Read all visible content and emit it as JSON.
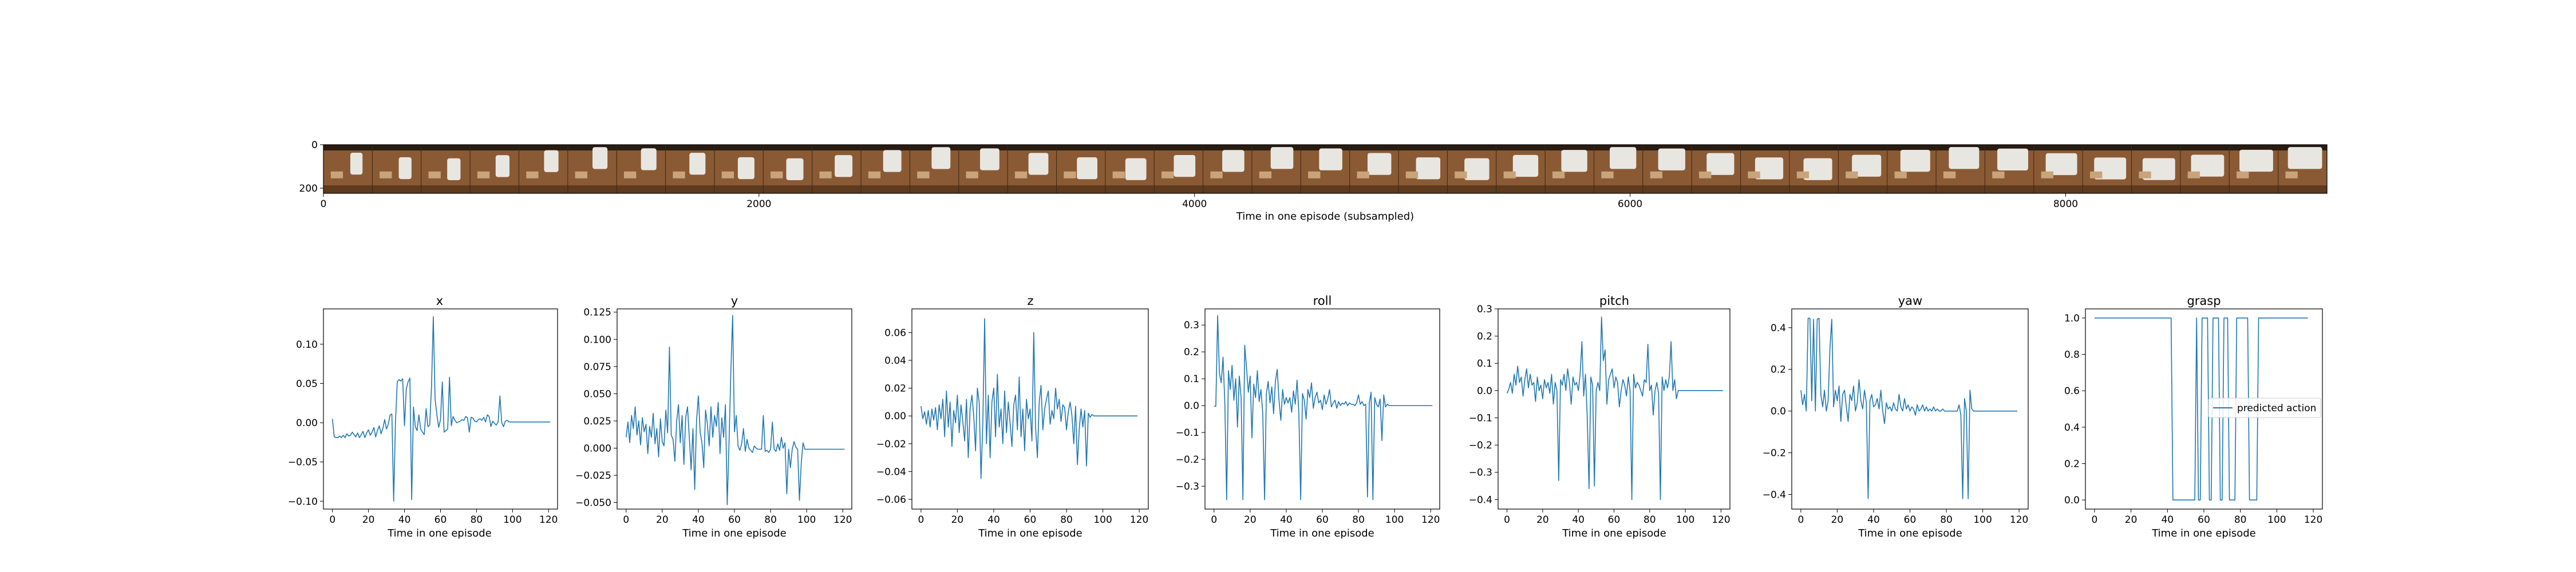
{
  "chart_data": [
    {
      "type": "image_strip",
      "xlabel": "Time in one episode (subsampled)",
      "x_ticks": [
        0,
        2000,
        4000,
        6000,
        8000
      ],
      "y_ticks": [
        0,
        200
      ],
      "xlim": [
        0,
        9200
      ],
      "ylim": [
        0,
        224
      ],
      "frame_count": 41,
      "colors": {
        "wood": "#8a5a34",
        "wood_dark": "#5e3a1f",
        "gripper": "#e8e6e1",
        "shadow": "#2a1b10"
      }
    },
    {
      "type": "line",
      "title": "x",
      "xlabel": "Time in one episode",
      "xlim": [
        -5,
        125
      ],
      "ylim": [
        -0.11,
        0.145
      ],
      "x_ticks": [
        0,
        20,
        40,
        60,
        80,
        100,
        120
      ],
      "y_ticks": [
        -0.1,
        -0.05,
        0.0,
        0.05,
        0.1
      ],
      "y_tick_labels": [
        "−0.10",
        "−0.05",
        "0.00",
        "0.05",
        "0.10"
      ],
      "values": [
        0.005,
        -0.018,
        -0.019,
        -0.019,
        -0.017,
        -0.019,
        -0.016,
        -0.019,
        -0.014,
        -0.017,
        -0.016,
        -0.012,
        -0.015,
        -0.018,
        -0.013,
        -0.019,
        -0.015,
        -0.011,
        -0.019,
        -0.013,
        -0.009,
        -0.016,
        -0.012,
        -0.006,
        -0.018,
        -0.01,
        -0.004,
        -0.014,
        -0.007,
        0.004,
        -0.008,
        -0.002,
        0.01,
        0.011,
        -0.1,
        0.001,
        0.052,
        0.055,
        0.053,
        0.056,
        -0.004,
        0.043,
        0.052,
        0.057,
        -0.098,
        0.02,
        -0.005,
        -0.01,
        0.01,
        -0.008,
        -0.012,
        -0.015,
        0.018,
        -0.005,
        -0.003,
        0.045,
        0.135,
        0.03,
        0.01,
        -0.006,
        0.004,
        0.052,
        -0.012,
        -0.01,
        -0.008,
        0.058,
        -0.004,
        0.008,
        0.003,
        0.0,
        0.001,
        0.002,
        0.004,
        0.003,
        0.008,
        0.006,
        -0.012,
        0.007,
        0.006,
        0.002,
        0.001,
        0.004,
        0.005,
        0.003,
        0.007,
        0.001,
        0.01,
        0.008,
        -0.005,
        0.002,
        -0.001,
        -0.003,
        0.001,
        0.034,
        0.0,
        -0.005,
        0.002,
        0.003,
        0.001,
        0.001,
        0.001,
        0.001,
        0.001,
        0.001,
        0.001,
        0.001,
        0.001,
        0.001,
        0.001,
        0.001,
        0.001,
        0.001,
        0.001,
        0.001,
        0.001,
        0.001,
        0.001,
        0.001,
        0.001,
        0.001,
        0.001,
        0.001
      ],
      "series_color": "#1f77b4"
    },
    {
      "type": "line",
      "title": "y",
      "xlabel": "Time in one episode",
      "xlim": [
        -5,
        125
      ],
      "ylim": [
        -0.056,
        0.128
      ],
      "x_ticks": [
        0,
        20,
        40,
        60,
        80,
        100,
        120
      ],
      "y_ticks": [
        -0.05,
        -0.025,
        0.0,
        0.025,
        0.05,
        0.075,
        0.1,
        0.125
      ],
      "y_tick_labels": [
        "−0.050",
        "−0.025",
        "0.000",
        "0.025",
        "0.050",
        "0.075",
        "0.100",
        "0.125"
      ],
      "values": [
        0.01,
        0.024,
        0.005,
        0.03,
        0.018,
        0.038,
        0.012,
        0.025,
        0.003,
        0.028,
        0.015,
        0.022,
        -0.005,
        0.02,
        0.01,
        0.032,
        0.004,
        0.018,
        -0.008,
        0.027,
        0.006,
        0.002,
        0.035,
        0.014,
        0.093,
        0.012,
        0.008,
        -0.012,
        0.025,
        0.04,
        0.005,
        0.03,
        -0.015,
        0.028,
        0.038,
        0.01,
        -0.02,
        0.018,
        -0.038,
        0.025,
        0.048,
        0.015,
        0.005,
        -0.018,
        0.035,
        0.022,
        0.002,
        0.038,
        0.01,
        0.03,
        0.02,
        0.042,
        -0.005,
        0.028,
        0.01,
        0.04,
        -0.052,
        0.005,
        0.07,
        0.122,
        0.015,
        0.03,
        0.002,
        -0.002,
        0.004,
        0.018,
        -0.003,
        0.008,
        0.0,
        -0.002,
        -0.004,
        0.002,
        0.0,
        -0.001,
        -0.001,
        -0.001,
        0.03,
        -0.003,
        -0.002,
        -0.004,
        -0.001,
        0.024,
        -0.001,
        -0.003,
        0.004,
        -0.002,
        0.01,
        0.0,
        0.005,
        -0.042,
        -0.001,
        -0.018,
        -0.001,
        0.006,
        0.001,
        -0.001,
        -0.048,
        -0.014,
        0.005,
        -0.001,
        -0.001,
        -0.001,
        -0.001,
        -0.001,
        -0.001,
        -0.001,
        -0.001,
        -0.001,
        -0.001,
        -0.001,
        -0.001,
        -0.001,
        -0.001,
        -0.001,
        -0.001,
        -0.001,
        -0.001,
        -0.001,
        -0.001,
        -0.001,
        -0.001,
        -0.001
      ],
      "series_color": "#1f77b4"
    },
    {
      "type": "line",
      "title": "z",
      "xlabel": "Time in one episode",
      "xlim": [
        -5,
        125
      ],
      "ylim": [
        -0.067,
        0.077
      ],
      "x_ticks": [
        0,
        20,
        40,
        60,
        80,
        100,
        120
      ],
      "y_ticks": [
        -0.06,
        -0.04,
        -0.02,
        0.0,
        0.02,
        0.04,
        0.06
      ],
      "y_tick_labels": [
        "−0.06",
        "−0.04",
        "−0.02",
        "0.00",
        "0.02",
        "0.04",
        "0.06"
      ],
      "values": [
        0.007,
        -0.002,
        0.003,
        -0.006,
        0.004,
        -0.008,
        0.005,
        -0.003,
        0.006,
        -0.01,
        0.008,
        -0.002,
        0.012,
        -0.015,
        0.018,
        -0.008,
        0.01,
        -0.022,
        0.004,
        -0.005,
        0.015,
        -0.012,
        0.008,
        -0.004,
        -0.018,
        0.012,
        -0.03,
        0.005,
        0.015,
        0.0,
        -0.025,
        0.02,
        0.01,
        -0.045,
        -0.005,
        0.07,
        -0.02,
        0.015,
        -0.03,
        0.01,
        0.02,
        -0.015,
        0.03,
        -0.008,
        0.005,
        -0.02,
        0.018,
        -0.012,
        0.01,
        -0.005,
        -0.022,
        0.008,
        0.015,
        -0.01,
        0.028,
        -0.015,
        0.005,
        -0.025,
        0.012,
        -0.002,
        0.005,
        -0.018,
        0.06,
        -0.008,
        -0.03,
        0.01,
        0.022,
        -0.01,
        0.005,
        0.012,
        0.018,
        -0.006,
        0.004,
        -0.002,
        0.02,
        0.005,
        0.012,
        -0.004,
        0.008,
        0.006,
        -0.01,
        0.003,
        0.01,
        0.0,
        -0.02,
        0.007,
        -0.035,
        -0.01,
        0.005,
        -0.008,
        0.004,
        -0.036,
        0.002,
        -0.001,
        0.001,
        0.0,
        0.0,
        0.0,
        0.0,
        0.0,
        0.0,
        0.0,
        0.0,
        0.0,
        0.0,
        0.0,
        0.0,
        0.0,
        0.0,
        0.0,
        0.0,
        0.0,
        0.0,
        0.0,
        0.0,
        0.0,
        0.0,
        0.0,
        0.0,
        0.0
      ],
      "series_color": "#1f77b4"
    },
    {
      "type": "line",
      "title": "roll",
      "xlabel": "Time in one episode",
      "xlim": [
        -5,
        125
      ],
      "ylim": [
        -0.385,
        0.36
      ],
      "x_ticks": [
        0,
        20,
        40,
        60,
        80,
        100,
        120
      ],
      "y_ticks": [
        -0.3,
        -0.2,
        -0.1,
        0.0,
        0.1,
        0.2,
        0.3
      ],
      "y_tick_labels": [
        "−0.3",
        "−0.2",
        "−0.1",
        "0.0",
        "0.1",
        "0.2",
        "0.3"
      ],
      "values": [
        -0.002,
        -0.002,
        0.335,
        0.12,
        0.085,
        0.18,
        0.005,
        -0.35,
        0.13,
        0.06,
        0.15,
        0.02,
        0.1,
        -0.08,
        0.11,
        0.03,
        -0.35,
        0.225,
        0.14,
        0.05,
        0.11,
        -0.12,
        0.08,
        0.03,
        0.13,
        0.015,
        0.06,
        -0.03,
        -0.35,
        0.045,
        0.09,
        0.01,
        0.07,
        -0.03,
        0.09,
        0.135,
        0.02,
        -0.055,
        0.06,
        0.005,
        0.03,
        0.01,
        0.03,
        -0.025,
        0.055,
        0.005,
        0.095,
        -0.03,
        -0.35,
        0.045,
        0.02,
        -0.05,
        0.06,
        0.03,
        0.085,
        -0.01,
        0.03,
        0.05,
        0.01,
        0.02,
        -0.015,
        0.04,
        0.005,
        0.025,
        0.06,
        -0.005,
        0.01,
        0.02,
        -0.01,
        0.015,
        0.0,
        0.01,
        0.005,
        0.015,
        0.0,
        0.01,
        0.005,
        0.005,
        0.0,
        0.01,
        0.04,
        0.005,
        0.015,
        0.0,
        0.005,
        -0.34,
        0.01,
        0.05,
        -0.35,
        0.03,
        0.005,
        -0.005,
        0.025,
        -0.13,
        0.04,
        -0.005,
        0.005,
        0.0,
        0.0,
        0.0,
        0.0,
        0.0,
        0.0,
        0.0,
        0.0,
        0.0,
        0.0,
        0.0,
        0.0,
        0.0,
        0.0,
        0.0,
        0.0,
        0.0,
        0.0,
        0.0,
        0.0,
        0.0,
        0.0,
        0.0,
        0.0,
        0.0
      ],
      "series_color": "#1f77b4"
    },
    {
      "type": "line",
      "title": "pitch",
      "xlabel": "Time in one episode",
      "xlim": [
        -5,
        125
      ],
      "ylim": [
        -0.435,
        0.3
      ],
      "x_ticks": [
        0,
        20,
        40,
        60,
        80,
        100,
        120
      ],
      "y_ticks": [
        -0.4,
        -0.3,
        -0.2,
        -0.1,
        0.0,
        0.1,
        0.2,
        0.3
      ],
      "y_tick_labels": [
        "−0.4",
        "−0.3",
        "−0.2",
        "−0.1",
        "0.0",
        "0.1",
        "0.2",
        "0.3"
      ],
      "values": [
        -0.01,
        0.005,
        0.03,
        -0.01,
        0.06,
        0.02,
        0.09,
        0.03,
        0.05,
        -0.02,
        0.04,
        0.08,
        0.01,
        0.06,
        0.02,
        0.03,
        -0.04,
        0.05,
        0.0,
        0.02,
        -0.03,
        0.04,
        0.01,
        0.03,
        -0.01,
        0.06,
        -0.05,
        0.03,
        0.0,
        -0.33,
        0.04,
        0.02,
        0.06,
        0.0,
        0.08,
        0.03,
        -0.05,
        0.05,
        0.02,
        0.03,
        0.0,
        0.06,
        0.18,
        -0.02,
        0.06,
        -0.1,
        -0.36,
        0.05,
        0.02,
        -0.35,
        0.0,
        0.03,
        0.0,
        0.27,
        0.11,
        0.15,
        -0.05,
        0.04,
        0.06,
        0.08,
        0.01,
        0.05,
        0.03,
        -0.06,
        0.0,
        0.04,
        0.02,
        -0.02,
        0.05,
        0.0,
        -0.4,
        0.06,
        0.01,
        0.03,
        0.02,
        0.0,
        -0.02,
        0.04,
        0.03,
        0.17,
        0.0,
        0.02,
        -0.09,
        0.0,
        0.03,
        -0.01,
        -0.4,
        0.05,
        0.0,
        0.04,
        0.01,
        0.05,
        0.18,
        0.0,
        0.04,
        -0.03,
        0.0,
        0.0,
        0.0,
        0.0,
        0.0,
        0.0,
        0.0,
        0.0,
        0.0,
        0.0,
        0.0,
        0.0,
        0.0,
        0.0,
        0.0,
        0.0,
        0.0,
        0.0,
        0.0,
        0.0,
        0.0,
        0.0,
        0.0,
        0.0,
        0.0,
        0.0
      ],
      "series_color": "#1f77b4"
    },
    {
      "type": "line",
      "title": "yaw",
      "xlabel": "Time in one episode",
      "xlim": [
        -5,
        125
      ],
      "ylim": [
        -0.47,
        0.49
      ],
      "x_ticks": [
        0,
        20,
        40,
        60,
        80,
        100,
        120
      ],
      "y_ticks": [
        -0.4,
        -0.2,
        0.0,
        0.2,
        0.4
      ],
      "y_tick_labels": [
        "−0.4",
        "−0.2",
        "0.0",
        "0.2",
        "0.4"
      ],
      "values": [
        0.1,
        0.03,
        0.08,
        0.0,
        0.445,
        0.445,
        0.05,
        0.44,
        0.0,
        0.44,
        0.445,
        0.08,
        0.02,
        0.1,
        0.0,
        0.05,
        0.3,
        0.44,
        0.02,
        0.1,
        0.05,
        0.12,
        -0.05,
        0.08,
        0.1,
        0.02,
        -0.05,
        0.08,
        0.05,
        0.12,
        0.0,
        0.04,
        0.15,
        0.05,
        0.01,
        0.1,
        0.04,
        -0.42,
        0.05,
        0.08,
        0.02,
        0.03,
        0.06,
        0.01,
        0.1,
        0.0,
        -0.06,
        0.04,
        0.01,
        0.02,
        0.0,
        0.04,
        0.01,
        0.0,
        0.08,
        0.02,
        0.0,
        0.06,
        0.01,
        0.03,
        0.0,
        0.02,
        0.01,
        -0.02,
        0.03,
        0.0,
        0.01,
        0.03,
        0.0,
        0.02,
        0.0,
        0.01,
        0.0,
        0.02,
        0.0,
        0.01,
        0.0,
        0.0,
        0.01,
        0.0,
        0.0,
        0.0,
        0.0,
        0.0,
        0.0,
        0.0,
        0.0,
        0.03,
        -0.02,
        -0.42,
        0.06,
        0.0,
        -0.42,
        0.1,
        0.01,
        0.0,
        0.0,
        0.0,
        0.0,
        0.0,
        0.0,
        0.0,
        0.0,
        0.0,
        0.0,
        0.0,
        0.0,
        0.0,
        0.0,
        0.0,
        0.0,
        0.0,
        0.0,
        0.0,
        0.0,
        0.0,
        0.0,
        0.0,
        0.0,
        0.0
      ],
      "series_color": "#1f77b4"
    },
    {
      "type": "line",
      "title": "grasp",
      "xlabel": "Time in one episode",
      "xlim": [
        -5,
        125
      ],
      "ylim": [
        -0.05,
        1.05
      ],
      "x_ticks": [
        0,
        20,
        40,
        60,
        80,
        100,
        120
      ],
      "y_ticks": [
        0.0,
        0.2,
        0.4,
        0.6,
        0.8,
        1.0
      ],
      "y_tick_labels": [
        "0.0",
        "0.2",
        "0.4",
        "0.6",
        "0.8",
        "1.0"
      ],
      "values": [
        1,
        1,
        1,
        1,
        1,
        1,
        1,
        1,
        1,
        1,
        1,
        1,
        1,
        1,
        1,
        1,
        1,
        1,
        1,
        1,
        1,
        1,
        1,
        1,
        1,
        1,
        1,
        1,
        1,
        1,
        1,
        1,
        1,
        1,
        1,
        1,
        1,
        1,
        1,
        1,
        1,
        1,
        1,
        0,
        0,
        0,
        0,
        0,
        0,
        0,
        0,
        0,
        0,
        0,
        0,
        0,
        1,
        0,
        0,
        1,
        1,
        1,
        1,
        0,
        0,
        1,
        1,
        1,
        1,
        0,
        0,
        1,
        1,
        1,
        0,
        0,
        0,
        0,
        1,
        1,
        1,
        1,
        1,
        1,
        1,
        0,
        0,
        0,
        0,
        0,
        1,
        1,
        1,
        1,
        1,
        1,
        1,
        1,
        1,
        1,
        1,
        1,
        1,
        1,
        1,
        1,
        1,
        1,
        1,
        1,
        1,
        1,
        1,
        1,
        1,
        1,
        1,
        1
      ],
      "series_color": "#1f77b4",
      "legend": {
        "entries": [
          "predicted action"
        ],
        "placement": "center-right"
      }
    }
  ]
}
